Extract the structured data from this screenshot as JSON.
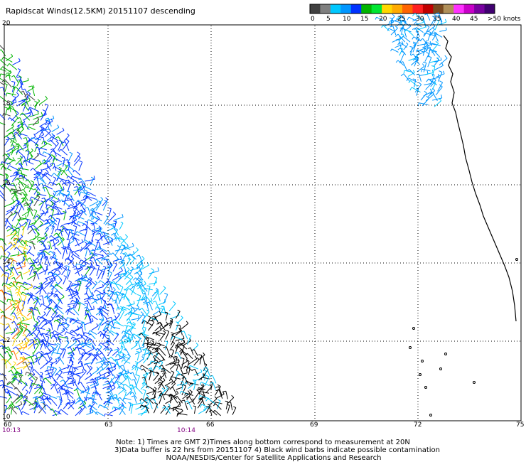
{
  "title": "Rapidscat Winds(12.5KM) 20151107 descending",
  "legend": {
    "colors": [
      "#404040",
      "#7f7f7f",
      "#00c8ff",
      "#0096ff",
      "#0032ff",
      "#00b400",
      "#00e632",
      "#ffd700",
      "#ffaa00",
      "#ff6400",
      "#ff2020",
      "#c00000",
      "#7a4a20",
      "#b0905a",
      "#ff32ff",
      "#c800c8",
      "#7800a0",
      "#400070"
    ],
    "tick_labels": [
      "0",
      "5",
      "10",
      "15",
      "20",
      "25",
      "30",
      "35",
      "40",
      "45",
      ">50 knots"
    ]
  },
  "axes": {
    "lat_labels": [
      "20",
      "18",
      "16",
      "14",
      "12",
      "10"
    ],
    "lon_labels": [
      "60",
      "63",
      "66",
      "69",
      "72",
      "75"
    ]
  },
  "times": {
    "left": "10:13",
    "mid": "10:14"
  },
  "notes": {
    "line1": "Note: 1) Times are GMT 2)Times along bottom correspond to measurement at 20N",
    "line2": "3)Data buffer is 22 hrs from 20151107 4) Black wind barbs indicate possible contamination",
    "line3": "NOAA/NESDIS/Center for Satellite Applications and Research"
  }
}
